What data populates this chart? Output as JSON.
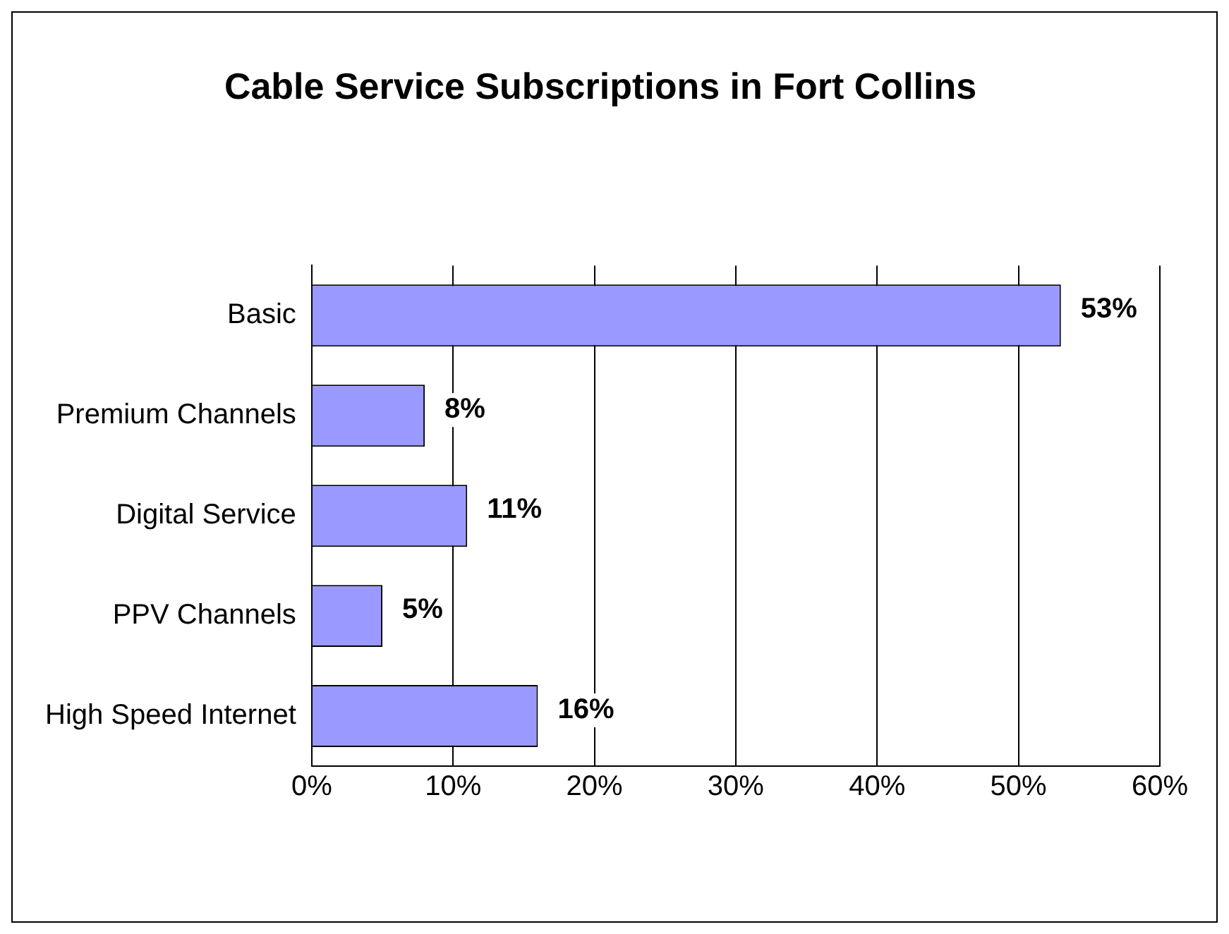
{
  "chart_data": {
    "type": "bar",
    "orientation": "horizontal",
    "title": "Cable Service Subscriptions in Fort Collins",
    "categories": [
      "Basic",
      "Premium Channels",
      "Digital Service",
      "PPV Channels",
      "High Speed Internet"
    ],
    "values": [
      53,
      8,
      11,
      5,
      16
    ],
    "color": "#9999ff",
    "value_labels": [
      "53%",
      "8%",
      "11%",
      "5%",
      "16%"
    ],
    "xlim": [
      0,
      60
    ],
    "xticks": [
      {
        "value": 0,
        "label": "0%"
      },
      {
        "value": 10,
        "label": "10%"
      },
      {
        "value": 20,
        "label": "20%"
      },
      {
        "value": 30,
        "label": "30%"
      },
      {
        "value": 40,
        "label": "40%"
      },
      {
        "value": 50,
        "label": "50%"
      },
      {
        "value": 60,
        "label": "60%"
      }
    ],
    "grid": "x",
    "legend": false
  }
}
